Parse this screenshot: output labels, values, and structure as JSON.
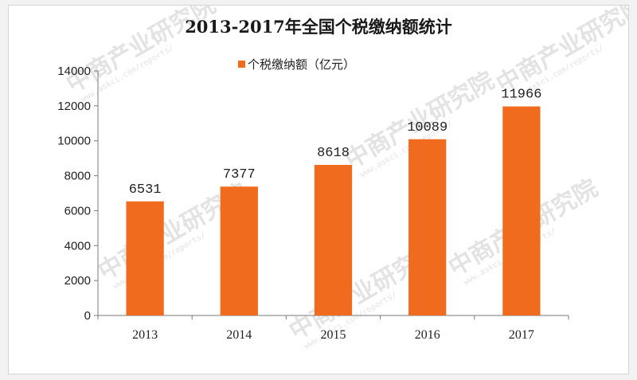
{
  "chart_data": {
    "type": "bar",
    "title": "2013-2017年全国个税缴纳额统计",
    "categories": [
      "2013",
      "2014",
      "2015",
      "2016",
      "2017"
    ],
    "series": [
      {
        "name": "个税缴纳额（亿元）",
        "values": [
          6531,
          7377,
          8618,
          10089,
          11966
        ]
      }
    ],
    "data_labels": [
      "6531",
      "7377",
      "8618",
      "10089",
      "11966"
    ],
    "xlabel": "",
    "ylabel": "",
    "ylim": [
      0,
      14000
    ],
    "yticks": [
      0,
      2000,
      4000,
      6000,
      8000,
      10000,
      12000,
      14000
    ],
    "grid": false,
    "legend_position": "top",
    "bar_color": "#f06b1e"
  },
  "watermark": {
    "brand": "中商产业研究院",
    "url": "www.askci.com/reports/"
  }
}
